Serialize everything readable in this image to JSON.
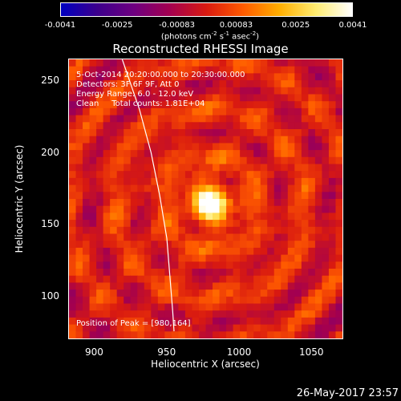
{
  "colorbar": {
    "tick_labels": [
      "-0.0041",
      "-0.0025",
      "-0.00083",
      "0.00083",
      "0.0025",
      "0.0041"
    ],
    "tick_values": [
      -0.0041,
      -0.0025,
      -0.00083,
      0.00083,
      0.0025,
      0.0041
    ],
    "units_prefix": "(photons cm",
    "units_exp1": "-2",
    "units_mid1": " s",
    "units_exp2": "-1",
    "units_mid2": " asec",
    "units_exp3": "-2",
    "units_suffix": ")",
    "colors": [
      "#0000c0",
      "#3c008c",
      "#6e0080",
      "#a4004f",
      "#d91a10",
      "#ff5a00",
      "#ffae00",
      "#ffec70",
      "#ffffff"
    ]
  },
  "annotations": {
    "time_range": "5-Oct-2014 20:20:00.000 to 20:30:00.000",
    "detectors": "Detectors: 3F 6F 9F, Att 0",
    "energy": "Energy Range: 6.0 - 12.0 keV",
    "clean": "Clean     Total counts: 1.81E+04",
    "peak": "Position of Peak = [980,164]"
  },
  "footer": {
    "timestamp": "26-May-2017 23:57"
  },
  "chart_data": {
    "type": "heatmap",
    "title": "Reconstructed RHESSI Image",
    "xlabel": "Heliocentric X (arcsec)",
    "ylabel": "Heliocentric Y (arcsec)",
    "xlim": [
      882,
      1072
    ],
    "ylim": [
      70,
      265
    ],
    "x_ticks": [
      900,
      950,
      1000,
      1050
    ],
    "y_ticks": [
      100,
      150,
      200,
      250
    ],
    "zlim": [
      -0.0041,
      0.0041
    ],
    "peak": {
      "x": 980,
      "y": 164
    },
    "limb_points": [
      [
        919,
        265
      ],
      [
        931,
        230
      ],
      [
        939,
        200
      ],
      [
        945,
        170
      ],
      [
        950,
        140
      ],
      [
        952,
        115
      ],
      [
        954,
        90
      ],
      [
        955,
        75
      ]
    ]
  }
}
